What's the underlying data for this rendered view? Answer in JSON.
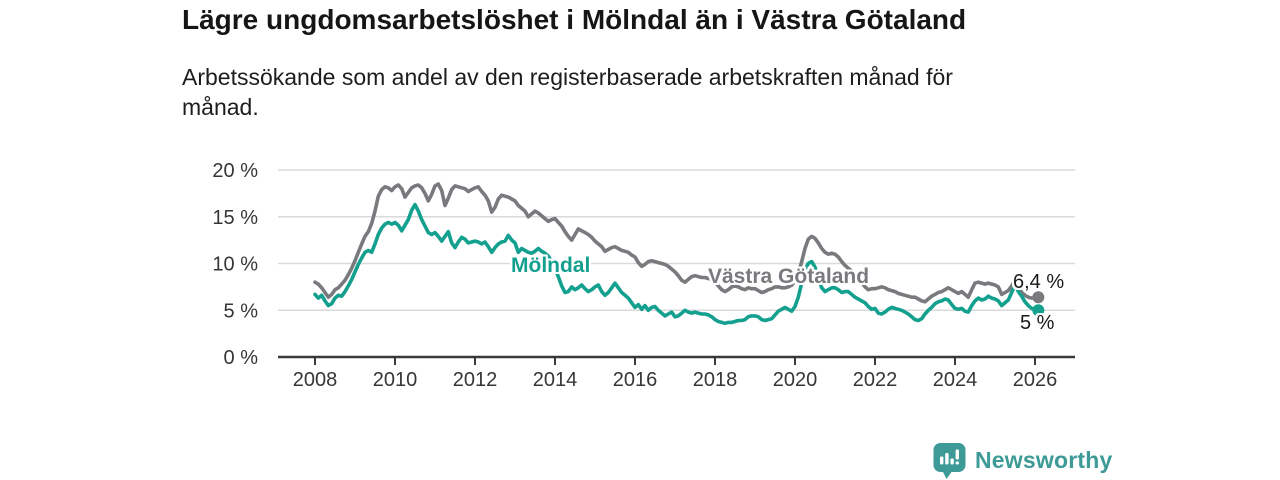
{
  "header": {
    "title": "Lägre ungdomsarbetslöshet i Mölndal än i Västra Götaland",
    "subtitle": "Arbetssökande som andel av den registerbaserade arbetskraften månad för månad."
  },
  "chart_data": {
    "type": "line",
    "grid": "horizontal",
    "x_axis": {
      "ticks": [
        2008,
        2010,
        2012,
        2014,
        2016,
        2018,
        2020,
        2022,
        2024,
        2026
      ],
      "tick_labels": [
        "2008",
        "2010",
        "2012",
        "2014",
        "2016",
        "2018",
        "2020",
        "2022",
        "2024",
        "2026"
      ],
      "range": [
        2007.1,
        2027.1
      ]
    },
    "y_axis": {
      "ticks": [
        0,
        5,
        10,
        15,
        20
      ],
      "tick_labels": [
        "0 %",
        "5 %",
        "10 %",
        "15 %",
        "20 %"
      ],
      "range": [
        0,
        20
      ]
    },
    "series": [
      {
        "name": "Västra Götaland",
        "color": "#797a7e",
        "end_label": "6,4 %",
        "end_value": 6.4,
        "start_year": 2008,
        "step_months": 1,
        "values": [
          8.0,
          7.8,
          7.4,
          6.9,
          6.4,
          6.7,
          7.2,
          7.4,
          7.8,
          8.2,
          8.8,
          9.5,
          10.3,
          11.2,
          12.1,
          12.9,
          13.4,
          14.3,
          15.6,
          17.2,
          17.9,
          18.2,
          18.1,
          17.8,
          18.2,
          18.4,
          18.0,
          17.1,
          17.6,
          18.1,
          18.3,
          18.4,
          18.1,
          17.5,
          16.7,
          17.4,
          18.3,
          18.5,
          17.8,
          16.2,
          17.0,
          17.9,
          18.3,
          18.2,
          18.1,
          18.0,
          17.7,
          17.9,
          18.1,
          18.2,
          17.7,
          17.3,
          16.7,
          15.5,
          16.0,
          16.9,
          17.3,
          17.2,
          17.1,
          16.9,
          16.7,
          16.2,
          15.9,
          15.6,
          15.0,
          15.3,
          15.6,
          15.4,
          15.1,
          14.8,
          14.5,
          14.7,
          14.8,
          14.4,
          14.0,
          13.4,
          12.9,
          12.5,
          13.1,
          13.7,
          13.5,
          13.3,
          13.1,
          12.8,
          12.4,
          12.1,
          11.8,
          11.3,
          11.5,
          11.7,
          11.8,
          11.6,
          11.4,
          11.3,
          11.2,
          10.9,
          10.7,
          10.1,
          9.7,
          9.9,
          10.2,
          10.3,
          10.2,
          10.1,
          10.0,
          9.9,
          9.7,
          9.4,
          9.1,
          8.7,
          8.2,
          8.0,
          8.3,
          8.6,
          8.7,
          8.6,
          8.5,
          8.5,
          8.4,
          8.3,
          8.0,
          7.6,
          7.2,
          7.0,
          7.2,
          7.5,
          7.6,
          7.5,
          7.3,
          7.2,
          7.4,
          7.3,
          7.3,
          7.1,
          6.9,
          7.0,
          7.2,
          7.3,
          7.5,
          7.5,
          7.4,
          7.4,
          7.5,
          7.7,
          8.1,
          8.9,
          10.2,
          11.6,
          12.6,
          12.9,
          12.7,
          12.2,
          11.6,
          11.2,
          11.0,
          11.1,
          11.0,
          10.7,
          10.2,
          9.8,
          9.5,
          9.2,
          8.9,
          8.5,
          8.0,
          7.5,
          7.2,
          7.3,
          7.3,
          7.4,
          7.5,
          7.4,
          7.2,
          7.1,
          7.0,
          6.8,
          6.7,
          6.6,
          6.5,
          6.4,
          6.4,
          6.2,
          6.0,
          5.9,
          6.2,
          6.5,
          6.7,
          6.9,
          7.0,
          7.2,
          7.4,
          7.2,
          7.0,
          6.8,
          7.0,
          6.7,
          6.4,
          7.2,
          7.9,
          8.0,
          7.9,
          7.8,
          7.9,
          7.8,
          7.7,
          7.5,
          6.7,
          6.9,
          7.1,
          7.6,
          8.2,
          7.6,
          6.9,
          6.6,
          6.4,
          6.3,
          6.3,
          6.4
        ]
      },
      {
        "name": "Mölndal",
        "color": "#13a08f",
        "end_label": "5 %",
        "end_value": 5,
        "start_year": 2008,
        "step_months": 1,
        "values": [
          6.7,
          6.3,
          6.6,
          6.0,
          5.5,
          5.7,
          6.3,
          6.6,
          6.5,
          7.0,
          7.6,
          8.3,
          9.1,
          9.9,
          10.6,
          11.2,
          11.4,
          11.2,
          12.1,
          13.1,
          13.8,
          14.2,
          14.4,
          14.2,
          14.4,
          14.1,
          13.5,
          14.1,
          14.7,
          15.7,
          16.3,
          15.6,
          14.7,
          14.0,
          13.3,
          13.1,
          13.3,
          12.9,
          12.4,
          12.9,
          13.4,
          12.2,
          11.7,
          12.3,
          12.8,
          12.6,
          12.2,
          12.3,
          12.4,
          12.3,
          12.1,
          12.3,
          11.8,
          11.2,
          11.7,
          12.1,
          12.3,
          12.4,
          13.0,
          12.5,
          12.2,
          11.2,
          11.6,
          11.4,
          11.2,
          11.1,
          11.3,
          11.6,
          11.3,
          11.1,
          10.8,
          10.2,
          9.4,
          8.6,
          7.6,
          6.9,
          7.0,
          7.5,
          7.2,
          7.4,
          7.7,
          7.3,
          7.0,
          7.2,
          7.5,
          7.7,
          7.0,
          6.6,
          6.9,
          7.4,
          7.9,
          7.4,
          6.9,
          6.6,
          6.3,
          5.8,
          5.3,
          5.6,
          5.1,
          5.5,
          5.0,
          5.3,
          5.4,
          5.0,
          4.7,
          4.4,
          4.6,
          4.8,
          4.3,
          4.4,
          4.7,
          5.0,
          4.8,
          4.7,
          4.8,
          4.7,
          4.6,
          4.6,
          4.5,
          4.3,
          4.0,
          3.8,
          3.7,
          3.6,
          3.7,
          3.7,
          3.8,
          3.9,
          3.9,
          4.0,
          4.3,
          4.4,
          4.4,
          4.3,
          4.0,
          3.9,
          4.0,
          4.1,
          4.5,
          4.9,
          5.1,
          5.3,
          5.1,
          4.9,
          5.4,
          6.4,
          7.9,
          9.3,
          10.0,
          10.2,
          9.6,
          8.4,
          7.4,
          7.0,
          7.2,
          7.4,
          7.4,
          7.2,
          6.9,
          7.0,
          7.0,
          6.7,
          6.4,
          6.2,
          6.0,
          5.8,
          5.4,
          5.1,
          5.2,
          4.7,
          4.6,
          4.8,
          5.1,
          5.3,
          5.2,
          5.1,
          5.0,
          4.8,
          4.6,
          4.3,
          4.0,
          3.9,
          4.1,
          4.6,
          5.0,
          5.3,
          5.7,
          5.9,
          6.0,
          6.2,
          6.1,
          5.6,
          5.2,
          5.1,
          5.2,
          4.9,
          4.8,
          5.5,
          6.0,
          6.3,
          6.1,
          6.2,
          6.5,
          6.3,
          6.2,
          6.0,
          5.5,
          5.8,
          6.1,
          6.9,
          7.7,
          7.0,
          6.5,
          5.9,
          5.5,
          5.2,
          5.1,
          5.0
        ]
      }
    ]
  },
  "colors": {
    "molndal_teal": "#13a08f",
    "vastra_gotaland_gray": "#797a7e",
    "gridline": "#dadada",
    "axis": "#3a3a3c",
    "tick_text": "#363636",
    "logo_teal": "#3d9a96"
  },
  "branding": {
    "logo_text": "Newsworthy"
  }
}
